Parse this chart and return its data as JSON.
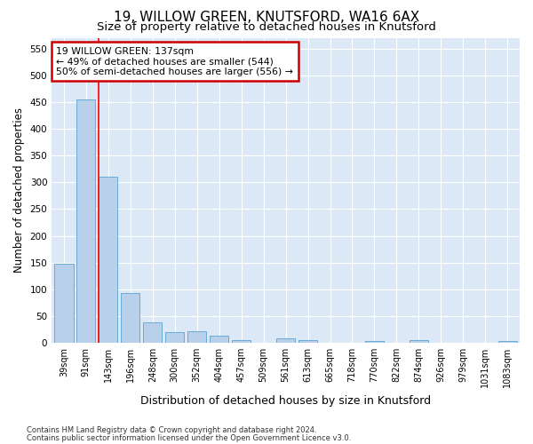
{
  "title1": "19, WILLOW GREEN, KNUTSFORD, WA16 6AX",
  "title2": "Size of property relative to detached houses in Knutsford",
  "xlabel": "Distribution of detached houses by size in Knutsford",
  "ylabel": "Number of detached properties",
  "categories": [
    "39sqm",
    "91sqm",
    "143sqm",
    "196sqm",
    "248sqm",
    "300sqm",
    "352sqm",
    "404sqm",
    "457sqm",
    "509sqm",
    "561sqm",
    "613sqm",
    "665sqm",
    "718sqm",
    "770sqm",
    "822sqm",
    "874sqm",
    "926sqm",
    "979sqm",
    "1031sqm",
    "1083sqm"
  ],
  "values": [
    148,
    455,
    311,
    93,
    38,
    20,
    21,
    13,
    5,
    0,
    8,
    5,
    0,
    0,
    4,
    0,
    5,
    0,
    0,
    0,
    4
  ],
  "bar_color": "#b8d0ea",
  "bar_edge_color": "#6aaad4",
  "red_line_index": 2,
  "annotation_line1": "19 WILLOW GREEN: 137sqm",
  "annotation_line2": "← 49% of detached houses are smaller (544)",
  "annotation_line3": "50% of semi-detached houses are larger (556) →",
  "annotation_box_color": "#ffffff",
  "annotation_box_edge": "#cc0000",
  "ylim": [
    0,
    570
  ],
  "yticks": [
    0,
    50,
    100,
    150,
    200,
    250,
    300,
    350,
    400,
    450,
    500,
    550
  ],
  "footer1": "Contains HM Land Registry data © Crown copyright and database right 2024.",
  "footer2": "Contains public sector information licensed under the Open Government Licence v3.0.",
  "bg_color": "#dce8f5",
  "plot_bg_color": "#dce8f5",
  "grid_color": "#ffffff",
  "fig_bg_color": "#ffffff",
  "title1_fontsize": 11,
  "title2_fontsize": 9.5,
  "tick_fontsize": 7,
  "ylabel_fontsize": 8.5,
  "xlabel_fontsize": 9
}
